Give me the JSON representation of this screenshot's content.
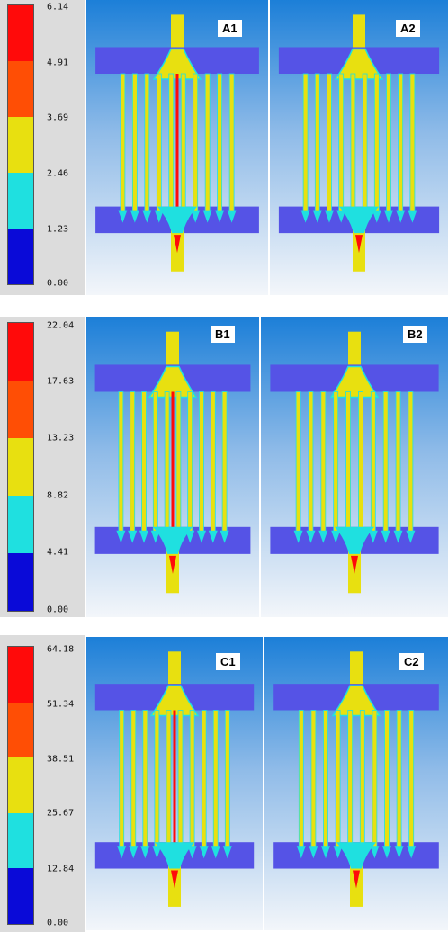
{
  "colors": {
    "level_0": "#0a0ad8",
    "level_1": "#1fe0e0",
    "level_2": "#e8e010",
    "level_3": "#ff4e05",
    "level_4": "#ff0a0a",
    "bg_top": "#1c7fd8",
    "bg_bottom": "#f3f6fa",
    "plate": "#5553e6"
  },
  "panels": [
    {
      "legend": {
        "ticks": [
          "6.14",
          "4.91",
          "3.69",
          "2.46",
          "1.23",
          "0.00"
        ]
      },
      "left_label": "A1",
      "right_label": "A2"
    },
    {
      "legend": {
        "ticks": [
          "22.04",
          "17.63",
          "13.23",
          "8.82",
          "4.41",
          "0.00"
        ]
      },
      "left_label": "B1",
      "right_label": "B2"
    },
    {
      "legend": {
        "ticks": [
          "64.18",
          "51.34",
          "38.51",
          "25.67",
          "12.84",
          "0.00"
        ]
      },
      "left_label": "C1",
      "right_label": "C2"
    }
  ]
}
